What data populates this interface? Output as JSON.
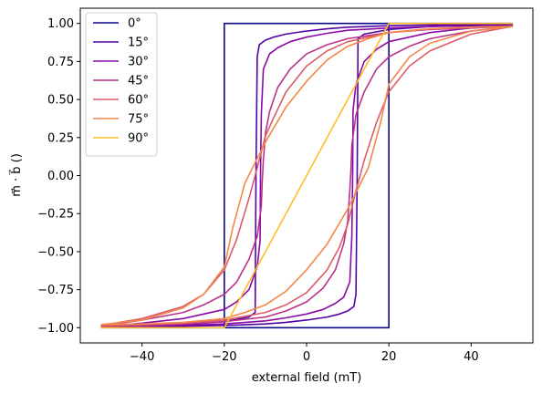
{
  "chart_data": {
    "type": "line",
    "xlabel": "external field (mT)",
    "ylabel": "m⃗ · b⃗ ()",
    "xlim": [
      -55,
      55
    ],
    "ylim": [
      -1.1,
      1.1
    ],
    "xticks": [
      -40,
      -20,
      0,
      20,
      40
    ],
    "yticks": [
      -1.0,
      -0.75,
      -0.5,
      -0.25,
      0.0,
      0.25,
      0.5,
      0.75,
      1.0
    ],
    "xtick_labels": [
      "−40",
      "−20",
      "0",
      "20",
      "40"
    ],
    "ytick_labels": [
      "−1.00",
      "−0.75",
      "−0.50",
      "−0.25",
      "0.00",
      "0.25",
      "0.50",
      "0.75",
      "1.00"
    ],
    "grid": false,
    "legend_position": "top-left",
    "series": [
      {
        "name": "0°",
        "color": "#0d0887",
        "points": [
          [
            -50,
            -1.0
          ],
          [
            20,
            -1.0
          ],
          [
            20,
            1.0
          ],
          [
            50,
            1.0
          ],
          [
            -20,
            1.0
          ],
          [
            -20,
            -1.0
          ],
          [
            -50,
            -1.0
          ]
        ]
      },
      {
        "name": "15°",
        "color": "#5302a3",
        "points": [
          [
            -50,
            -0.995
          ],
          [
            -40,
            -0.993
          ],
          [
            -30,
            -0.99
          ],
          [
            -20,
            -0.985
          ],
          [
            -10,
            -0.975
          ],
          [
            -5,
            -0.965
          ],
          [
            0,
            -0.95
          ],
          [
            5,
            -0.93
          ],
          [
            8,
            -0.91
          ],
          [
            10,
            -0.89
          ],
          [
            11.5,
            -0.86
          ],
          [
            12,
            -0.78
          ],
          [
            12.3,
            0.0
          ],
          [
            12.5,
            0.9
          ],
          [
            14,
            0.93
          ],
          [
            20,
            0.96
          ],
          [
            30,
            0.98
          ],
          [
            40,
            0.99
          ],
          [
            50,
            0.995
          ],
          [
            40,
            0.993
          ],
          [
            30,
            0.99
          ],
          [
            20,
            0.985
          ],
          [
            10,
            0.975
          ],
          [
            5,
            0.965
          ],
          [
            0,
            0.95
          ],
          [
            -5,
            0.93
          ],
          [
            -8,
            0.91
          ],
          [
            -10,
            0.89
          ],
          [
            -11.5,
            0.86
          ],
          [
            -12,
            0.78
          ],
          [
            -12.3,
            0.0
          ],
          [
            -12.5,
            -0.9
          ],
          [
            -14,
            -0.93
          ],
          [
            -20,
            -0.96
          ],
          [
            -30,
            -0.98
          ],
          [
            -40,
            -0.99
          ],
          [
            -50,
            -0.995
          ]
        ]
      },
      {
        "name": "30°",
        "color": "#8b0aa5",
        "points": [
          [
            -50,
            -0.993
          ],
          [
            -40,
            -0.99
          ],
          [
            -30,
            -0.985
          ],
          [
            -20,
            -0.975
          ],
          [
            -10,
            -0.955
          ],
          [
            -5,
            -0.935
          ],
          [
            0,
            -0.91
          ],
          [
            4,
            -0.88
          ],
          [
            7,
            -0.84
          ],
          [
            9,
            -0.8
          ],
          [
            10.5,
            -0.7
          ],
          [
            11,
            -0.4
          ],
          [
            11.2,
            0.0
          ],
          [
            11.3,
            0.43
          ],
          [
            12,
            0.6
          ],
          [
            14,
            0.75
          ],
          [
            17,
            0.83
          ],
          [
            20,
            0.88
          ],
          [
            30,
            0.94
          ],
          [
            40,
            0.97
          ],
          [
            50,
            0.985
          ],
          [
            40,
            0.983
          ],
          [
            30,
            0.98
          ],
          [
            20,
            0.97
          ],
          [
            10,
            0.955
          ],
          [
            5,
            0.935
          ],
          [
            0,
            0.91
          ],
          [
            -4,
            0.88
          ],
          [
            -7,
            0.84
          ],
          [
            -9,
            0.8
          ],
          [
            -10.5,
            0.7
          ],
          [
            -11,
            0.4
          ],
          [
            -11.2,
            0.0
          ],
          [
            -11.3,
            -0.43
          ],
          [
            -12,
            -0.6
          ],
          [
            -14,
            -0.75
          ],
          [
            -17,
            -0.83
          ],
          [
            -20,
            -0.88
          ],
          [
            -30,
            -0.94
          ],
          [
            -40,
            -0.97
          ],
          [
            -50,
            -0.993
          ]
        ]
      },
      {
        "name": "45°",
        "color": "#b93289",
        "points": [
          [
            -50,
            -0.99
          ],
          [
            -40,
            -0.985
          ],
          [
            -30,
            -0.975
          ],
          [
            -20,
            -0.96
          ],
          [
            -10,
            -0.93
          ],
          [
            -5,
            -0.89
          ],
          [
            0,
            -0.83
          ],
          [
            4,
            -0.74
          ],
          [
            7,
            -0.62
          ],
          [
            9,
            -0.45
          ],
          [
            10,
            -0.3
          ],
          [
            10.5,
            -0.1
          ],
          [
            10.8,
            0.05
          ],
          [
            11,
            0.2
          ],
          [
            12,
            0.4
          ],
          [
            14,
            0.55
          ],
          [
            17,
            0.7
          ],
          [
            20,
            0.78
          ],
          [
            25,
            0.85
          ],
          [
            30,
            0.9
          ],
          [
            40,
            0.95
          ],
          [
            50,
            0.98
          ],
          [
            40,
            0.97
          ],
          [
            30,
            0.96
          ],
          [
            20,
            0.94
          ],
          [
            10,
            0.9
          ],
          [
            5,
            0.86
          ],
          [
            0,
            0.8
          ],
          [
            -4,
            0.7
          ],
          [
            -7,
            0.58
          ],
          [
            -9,
            0.42
          ],
          [
            -10,
            0.28
          ],
          [
            -10.5,
            0.1
          ],
          [
            -10.8,
            -0.05
          ],
          [
            -11,
            -0.2
          ],
          [
            -12,
            -0.4
          ],
          [
            -14,
            -0.55
          ],
          [
            -17,
            -0.7
          ],
          [
            -20,
            -0.78
          ],
          [
            -25,
            -0.85
          ],
          [
            -30,
            -0.9
          ],
          [
            -40,
            -0.95
          ],
          [
            -50,
            -0.99
          ]
        ]
      },
      {
        "name": "60°",
        "color": "#db5c68",
        "points": [
          [
            -50,
            -0.985
          ],
          [
            -40,
            -0.98
          ],
          [
            -30,
            -0.97
          ],
          [
            -20,
            -0.95
          ],
          [
            -10,
            -0.9
          ],
          [
            -5,
            -0.85
          ],
          [
            0,
            -0.77
          ],
          [
            5,
            -0.62
          ],
          [
            8,
            -0.47
          ],
          [
            10,
            -0.32
          ],
          [
            12,
            -0.1
          ],
          [
            14,
            0.1
          ],
          [
            17,
            0.35
          ],
          [
            20,
            0.55
          ],
          [
            25,
            0.72
          ],
          [
            30,
            0.82
          ],
          [
            40,
            0.93
          ],
          [
            50,
            0.98
          ],
          [
            40,
            0.975
          ],
          [
            30,
            0.965
          ],
          [
            20,
            0.94
          ],
          [
            10,
            0.88
          ],
          [
            5,
            0.82
          ],
          [
            0,
            0.72
          ],
          [
            -5,
            0.55
          ],
          [
            -8,
            0.38
          ],
          [
            -10,
            0.26
          ],
          [
            -12,
            0.05
          ],
          [
            -14,
            -0.15
          ],
          [
            -17,
            -0.42
          ],
          [
            -20,
            -0.62
          ],
          [
            -25,
            -0.78
          ],
          [
            -30,
            -0.86
          ],
          [
            -40,
            -0.94
          ],
          [
            -50,
            -0.985
          ]
        ]
      },
      {
        "name": "75°",
        "color": "#f48849",
        "points": [
          [
            -50,
            -0.98
          ],
          [
            -40,
            -0.975
          ],
          [
            -30,
            -0.965
          ],
          [
            -20,
            -0.94
          ],
          [
            -15,
            -0.9
          ],
          [
            -10,
            -0.85
          ],
          [
            -5,
            -0.76
          ],
          [
            0,
            -0.62
          ],
          [
            5,
            -0.45
          ],
          [
            10,
            -0.22
          ],
          [
            15,
            0.05
          ],
          [
            18,
            0.35
          ],
          [
            20,
            0.6
          ],
          [
            25,
            0.78
          ],
          [
            30,
            0.87
          ],
          [
            40,
            0.95
          ],
          [
            50,
            0.98
          ],
          [
            40,
            0.975
          ],
          [
            30,
            0.965
          ],
          [
            20,
            0.94
          ],
          [
            15,
            0.9
          ],
          [
            10,
            0.85
          ],
          [
            5,
            0.76
          ],
          [
            0,
            0.62
          ],
          [
            -5,
            0.45
          ],
          [
            -10,
            0.22
          ],
          [
            -15,
            -0.05
          ],
          [
            -18,
            -0.35
          ],
          [
            -20,
            -0.6
          ],
          [
            -25,
            -0.78
          ],
          [
            -30,
            -0.87
          ],
          [
            -40,
            -0.95
          ],
          [
            -50,
            -0.98
          ]
        ]
      },
      {
        "name": "90°",
        "color": "#febd2a",
        "points": [
          [
            -50,
            -1.0
          ],
          [
            -20,
            -1.0
          ],
          [
            20,
            1.0
          ],
          [
            50,
            1.0
          ],
          [
            20,
            1.0
          ],
          [
            -20,
            -1.0
          ],
          [
            -50,
            -1.0
          ]
        ]
      }
    ]
  }
}
